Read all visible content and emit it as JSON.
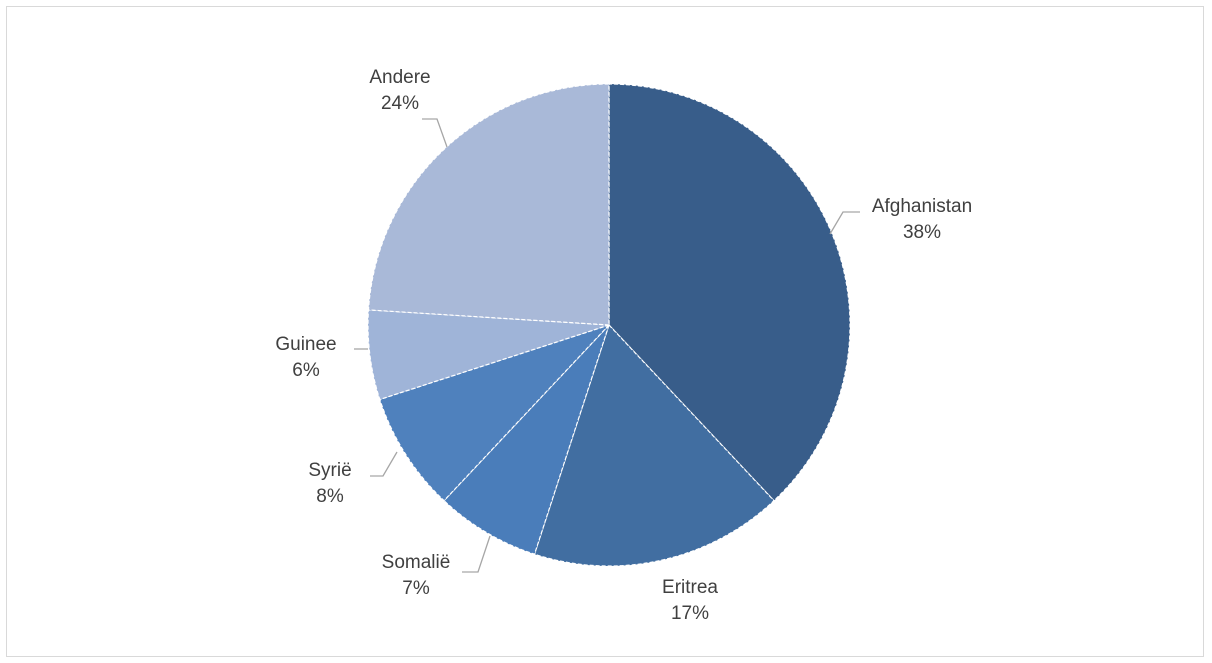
{
  "chart_data": {
    "type": "pie",
    "title": "",
    "start_angle_deg": 0,
    "direction": "clockwise",
    "slices": [
      {
        "label": "Afghanistan",
        "value": 38,
        "value_label": "38%",
        "color": "#385d8a"
      },
      {
        "label": "Eritrea",
        "value": 17,
        "value_label": "17%",
        "color": "#416ea1"
      },
      {
        "label": "Somaliё",
        "value": 7,
        "value_label": "7%",
        "color": "#4a7dba"
      },
      {
        "label": "Syriё",
        "value": 8,
        "value_label": "8%",
        "color": "#4f81bd"
      },
      {
        "label": "Guinee",
        "value": 6,
        "value_label": "6%",
        "color": "#9fb4d8"
      },
      {
        "label": "Andere",
        "value": 24,
        "value_label": "24%",
        "color": "#a9b9d8"
      }
    ]
  }
}
